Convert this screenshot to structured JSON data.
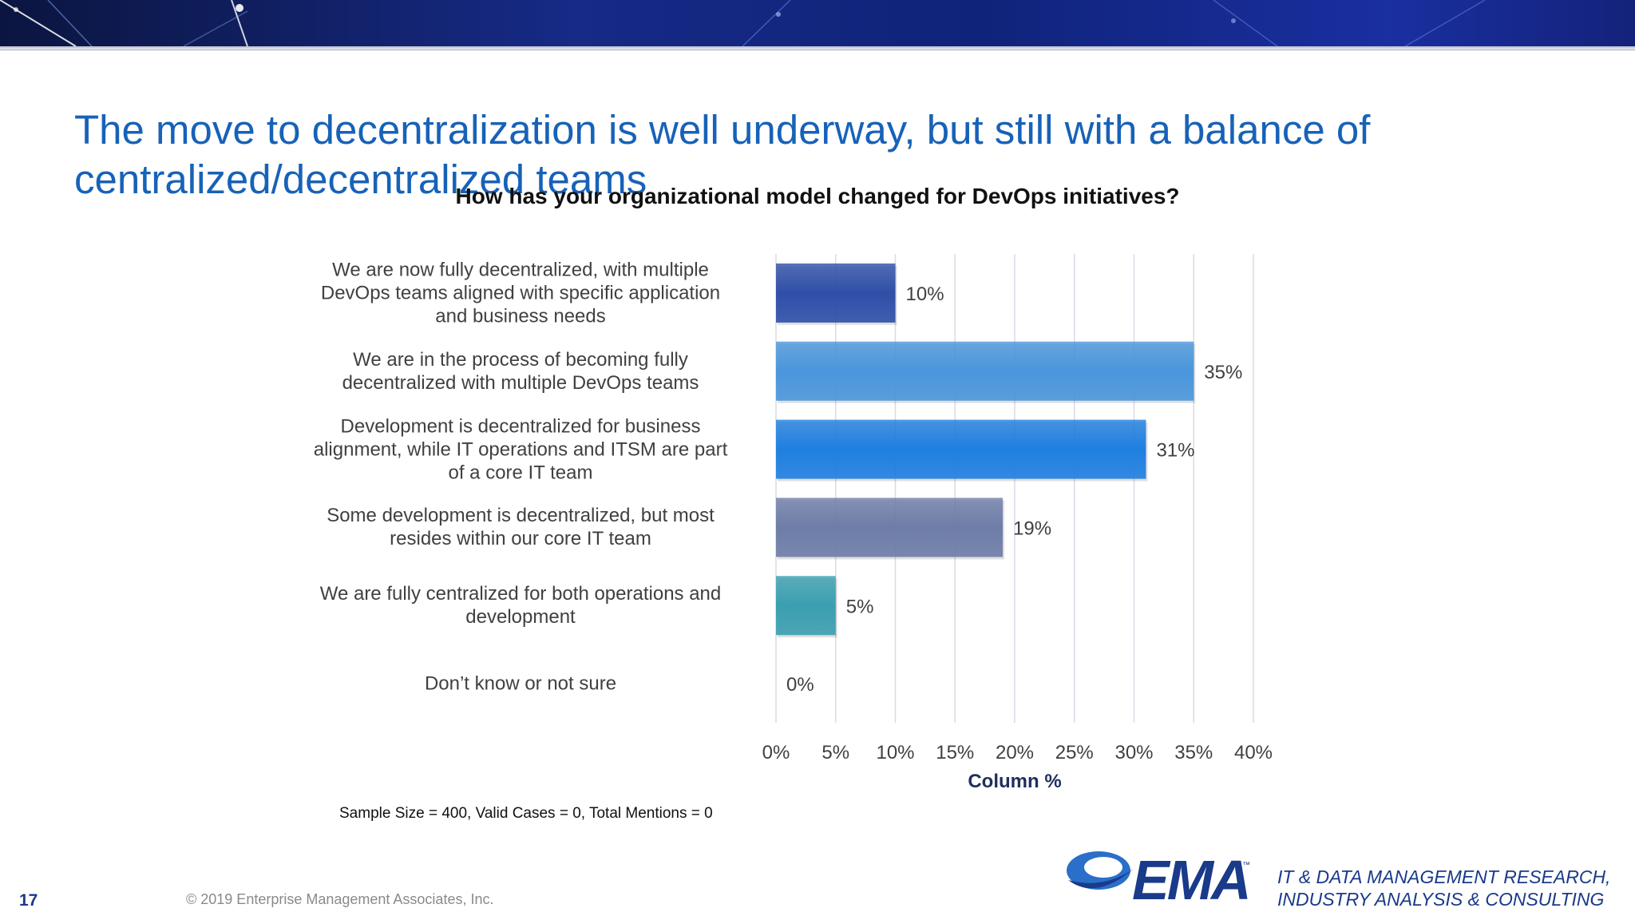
{
  "slide": {
    "title": "The move to decentralization is well underway, but still with a balance of centralized/decentralized teams",
    "page_number": "17",
    "copyright": "© 2019 Enterprise Management Associates, Inc.",
    "note": "Sample Size = 400, Valid Cases = 0, Total Mentions = 0",
    "logo_text": "EMA",
    "logo_tm": "™",
    "tagline_line1": "IT & DATA MANAGEMENT RESEARCH,",
    "tagline_line2": "INDUSTRY ANALYSIS & CONSULTING"
  },
  "chart_data": {
    "type": "bar",
    "orientation": "horizontal",
    "title": "How has your organizational model changed for DevOps initiatives?",
    "xlabel": "Column %",
    "ylabel": "",
    "xlim": [
      0,
      40
    ],
    "x_ticks": [
      "0%",
      "5%",
      "10%",
      "15%",
      "20%",
      "25%",
      "30%",
      "35%",
      "40%"
    ],
    "grid": true,
    "categories": [
      [
        "We are now fully decentralized, with multiple",
        "DevOps teams aligned with specific application",
        "and business needs"
      ],
      [
        "We are in the process of becoming fully",
        "decentralized with multiple DevOps teams"
      ],
      [
        "Development is decentralized for business",
        "alignment, while IT operations and ITSM are part",
        "of a core IT team"
      ],
      [
        "Some development is decentralized, but most",
        "resides within our core IT team"
      ],
      [
        "We are fully centralized for both operations and",
        "development"
      ],
      [
        "Don’t know or not sure"
      ]
    ],
    "values": [
      10,
      35,
      31,
      19,
      5,
      0
    ],
    "data_labels": [
      "10%",
      "35%",
      "31%",
      "19%",
      "5%",
      "0%"
    ],
    "bar_colors": [
      "#2f4fa8",
      "#4a96dc",
      "#1f7fe0",
      "#6e7da8",
      "#3a9fb0",
      "#9aa0a8"
    ]
  }
}
